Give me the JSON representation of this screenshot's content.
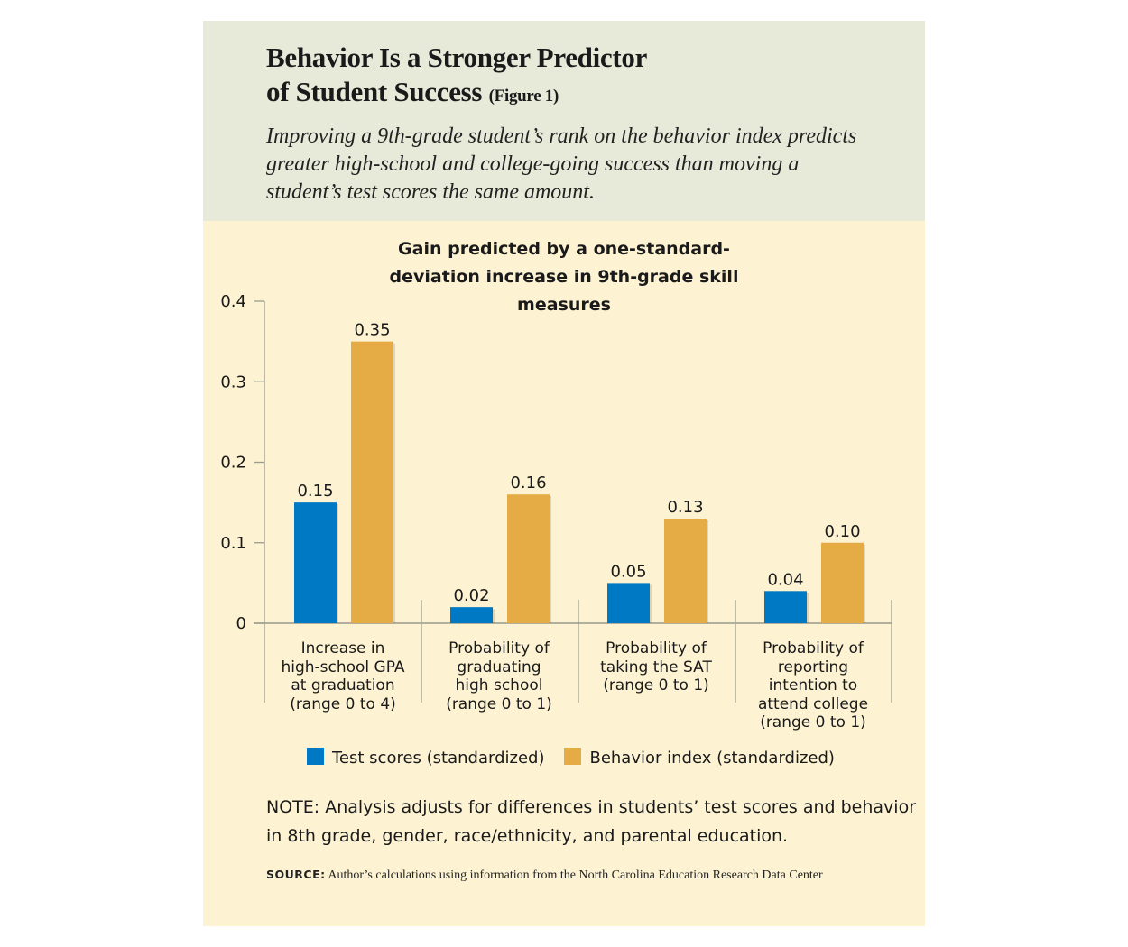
{
  "header": {
    "title_line1": "Behavior Is a Stronger Predictor",
    "title_line2": "of Student Success",
    "figure_tag": "(Figure 1)",
    "subtitle": "Improving a 9th-grade student’s rank on the behavior index predicts greater high-school and college-going success than moving a student’s test scores the same amount."
  },
  "chart_data": {
    "type": "bar",
    "title": "Gain predicted by a one-standard-deviation increase in 9th-grade skill measures",
    "categories": [
      "Increase in high-school GPA at graduation (range 0 to 4)",
      "Probability of graduating high school (range 0 to 1)",
      "Probability of taking the SAT (range 0 to 1)",
      "Probability of reporting intention to attend college (range 0 to 1)"
    ],
    "series": [
      {
        "name": "Test scores (standardized)",
        "color": "#0079c5",
        "values": [
          0.15,
          0.02,
          0.05,
          0.04
        ],
        "labels": [
          "0.15",
          "0.02",
          "0.05",
          "0.04"
        ]
      },
      {
        "name": "Behavior index (standardized)",
        "color": "#e5ac46",
        "values": [
          0.35,
          0.16,
          0.13,
          0.1
        ],
        "labels": [
          "0.35",
          "0.16",
          "0.13",
          "0.10"
        ]
      }
    ],
    "yticks": [
      "0",
      "0.1",
      "0.2",
      "0.3",
      "0.4"
    ],
    "ytick_values": [
      0,
      0.1,
      0.2,
      0.3,
      0.4
    ],
    "ylim": [
      0,
      0.4
    ],
    "xlabel": "",
    "ylabel": "",
    "grid": false,
    "legend": "bottom"
  },
  "note": "NOTE: Analysis adjusts for differences in students’ test scores and behavior in 8th grade, gender, race/ethnicity, and parental education.",
  "source": {
    "label": "SOURCE:",
    "text": "Author’s calculations using information from the North Carolina Education Research Data Center"
  }
}
